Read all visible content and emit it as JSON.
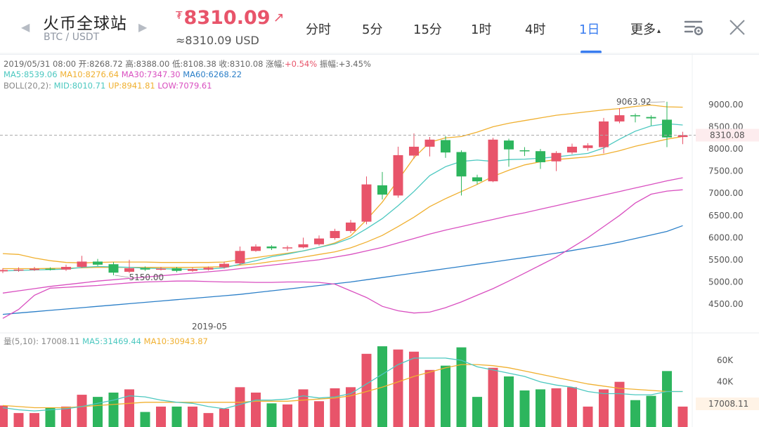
{
  "header": {
    "title": "火币全球站",
    "pair": "BTC / USDT",
    "price_currency": "₮",
    "price": "8310.09",
    "price_arrow": "↗",
    "price_usd": "≈8310.09 USD",
    "prev_icon": "chevron-left-icon",
    "next_icon": "chevron-right-icon",
    "settings_icon": "chart-settings-icon",
    "close_icon": "close-icon"
  },
  "tabs": [
    {
      "label": "分时",
      "active": false
    },
    {
      "label": "5分",
      "active": false
    },
    {
      "label": "15分",
      "active": false
    },
    {
      "label": "1时",
      "active": false
    },
    {
      "label": "4时",
      "active": false
    },
    {
      "label": "1日",
      "active": true
    },
    {
      "label": "更多",
      "active": false
    }
  ],
  "more_caret": "▴",
  "ohlc": {
    "date": "2019/05/31 08:00",
    "open_label": "开:",
    "open": "8268.72",
    "high_label": "高:",
    "high": "8388.00",
    "low_label": "低:",
    "low": "8108.38",
    "close_label": "收:",
    "close": "8310.08",
    "change_label": "涨幅:",
    "change": "+0.54%",
    "amplitude_label": "振幅:",
    "amplitude": "+3.45%"
  },
  "ma": {
    "ma5": "MA5:8539.06",
    "ma10": "MA10:8276.64",
    "ma30": "MA30:7347.30",
    "ma60": "MA60:6268.22"
  },
  "boll": {
    "label": "BOLL(20,2):",
    "mid": "MID:8010.71",
    "up": "UP:8941.81",
    "low": "LOW:7079.61"
  },
  "volume_info": {
    "label": "量(5,10): 17008.11",
    "ma5": "MA5:31469.44",
    "ma10": "MA10:30943.87"
  },
  "colors": {
    "up": "#e8546a",
    "down": "#2db55d",
    "ma5": "#4cc8c0",
    "ma10": "#f0b030",
    "ma30": "#d94fc0",
    "ma60": "#2b7fc8",
    "accent": "#3a7df0"
  },
  "chart_data": {
    "type": "candlestick",
    "x_label": "2019-05",
    "y_ticks": [
      "9000.00",
      "8500.00",
      "8000.00",
      "7500.00",
      "7000.00",
      "6500.00",
      "6000.00",
      "5500.00",
      "5000.00",
      "4500.00"
    ],
    "y_range": [
      4200,
      9300
    ],
    "current_price_tag": "8310.08",
    "max_annotation": "9063.92",
    "min_annotation": "5150.00",
    "candles": [
      {
        "o": 5240,
        "c": 5270,
        "h": 5310,
        "l": 5200
      },
      {
        "o": 5260,
        "c": 5280,
        "h": 5330,
        "l": 5230
      },
      {
        "o": 5270,
        "c": 5300,
        "h": 5340,
        "l": 5250
      },
      {
        "o": 5300,
        "c": 5290,
        "h": 5330,
        "l": 5260
      },
      {
        "o": 5280,
        "c": 5340,
        "h": 5390,
        "l": 5250
      },
      {
        "o": 5340,
        "c": 5460,
        "h": 5590,
        "l": 5320
      },
      {
        "o": 5460,
        "c": 5390,
        "h": 5520,
        "l": 5360
      },
      {
        "o": 5400,
        "c": 5210,
        "h": 5450,
        "l": 5150
      },
      {
        "o": 5230,
        "c": 5310,
        "h": 5500,
        "l": 5200
      },
      {
        "o": 5310,
        "c": 5280,
        "h": 5350,
        "l": 5250
      },
      {
        "o": 5280,
        "c": 5300,
        "h": 5340,
        "l": 5260
      },
      {
        "o": 5310,
        "c": 5250,
        "h": 5340,
        "l": 5220
      },
      {
        "o": 5250,
        "c": 5290,
        "h": 5320,
        "l": 5230
      },
      {
        "o": 5280,
        "c": 5320,
        "h": 5350,
        "l": 5260
      },
      {
        "o": 5330,
        "c": 5410,
        "h": 5460,
        "l": 5300
      },
      {
        "o": 5420,
        "c": 5700,
        "h": 5800,
        "l": 5380
      },
      {
        "o": 5700,
        "c": 5800,
        "h": 5850,
        "l": 5680
      },
      {
        "o": 5800,
        "c": 5760,
        "h": 5830,
        "l": 5720
      },
      {
        "o": 5760,
        "c": 5780,
        "h": 5820,
        "l": 5700
      },
      {
        "o": 5780,
        "c": 5850,
        "h": 6000,
        "l": 5760
      },
      {
        "o": 5850,
        "c": 5980,
        "h": 6050,
        "l": 5820
      },
      {
        "o": 5990,
        "c": 6150,
        "h": 6200,
        "l": 5950
      },
      {
        "o": 6150,
        "c": 6340,
        "h": 6400,
        "l": 6100
      },
      {
        "o": 6360,
        "c": 7200,
        "h": 7380,
        "l": 6300
      },
      {
        "o": 7180,
        "c": 6970,
        "h": 7480,
        "l": 6860
      },
      {
        "o": 6950,
        "c": 7860,
        "h": 8050,
        "l": 6900
      },
      {
        "o": 7850,
        "c": 8050,
        "h": 8350,
        "l": 7780
      },
      {
        "o": 8050,
        "c": 8210,
        "h": 8270,
        "l": 7830
      },
      {
        "o": 8200,
        "c": 7920,
        "h": 8290,
        "l": 7800
      },
      {
        "o": 7930,
        "c": 7380,
        "h": 7970,
        "l": 6950
      },
      {
        "o": 7360,
        "c": 7270,
        "h": 7420,
        "l": 7200
      },
      {
        "o": 7270,
        "c": 8210,
        "h": 8250,
        "l": 7250
      },
      {
        "o": 8190,
        "c": 7990,
        "h": 8230,
        "l": 7600
      },
      {
        "o": 7970,
        "c": 7950,
        "h": 8040,
        "l": 7840
      },
      {
        "o": 7950,
        "c": 7700,
        "h": 8000,
        "l": 7550
      },
      {
        "o": 7720,
        "c": 7910,
        "h": 7950,
        "l": 7500
      },
      {
        "o": 7920,
        "c": 8050,
        "h": 8120,
        "l": 7880
      },
      {
        "o": 8020,
        "c": 8080,
        "h": 8130,
        "l": 7960
      },
      {
        "o": 8040,
        "c": 8620,
        "h": 8700,
        "l": 7900
      },
      {
        "o": 8620,
        "c": 8760,
        "h": 8920,
        "l": 8580
      },
      {
        "o": 8760,
        "c": 8750,
        "h": 8800,
        "l": 8600
      },
      {
        "o": 8720,
        "c": 8690,
        "h": 8760,
        "l": 8530
      },
      {
        "o": 8660,
        "c": 8260,
        "h": 9064,
        "l": 8040
      },
      {
        "o": 8269,
        "c": 8310,
        "h": 8388,
        "l": 8108
      }
    ],
    "ma5": [
      5250,
      5260,
      5270,
      5280,
      5290,
      5330,
      5350,
      5340,
      5330,
      5310,
      5300,
      5290,
      5285,
      5290,
      5320,
      5400,
      5480,
      5570,
      5630,
      5700,
      5780,
      5860,
      5990,
      6200,
      6430,
      6720,
      7040,
      7400,
      7600,
      7720,
      7750,
      7720,
      7760,
      7770,
      7790,
      7820,
      7860,
      7900,
      8020,
      8220,
      8400,
      8520,
      8570,
      8540
    ],
    "ma10": [
      5300,
      5300,
      5300,
      5305,
      5310,
      5320,
      5330,
      5330,
      5330,
      5330,
      5330,
      5330,
      5330,
      5335,
      5345,
      5380,
      5410,
      5460,
      5500,
      5560,
      5620,
      5680,
      5770,
      5900,
      6050,
      6250,
      6460,
      6700,
      6880,
      7040,
      7200,
      7380,
      7520,
      7640,
      7710,
      7760,
      7790,
      7820,
      7880,
      7960,
      8060,
      8140,
      8220,
      8280
    ],
    "ma30": [
      4750,
      4800,
      4850,
      4900,
      4940,
      4980,
      5020,
      5050,
      5080,
      5110,
      5140,
      5170,
      5200,
      5230,
      5260,
      5300,
      5340,
      5380,
      5420,
      5460,
      5500,
      5560,
      5620,
      5700,
      5780,
      5880,
      5980,
      6080,
      6170,
      6250,
      6330,
      6410,
      6490,
      6560,
      6640,
      6720,
      6800,
      6880,
      6960,
      7040,
      7120,
      7200,
      7280,
      7350
    ],
    "ma60": [
      4270,
      4300,
      4330,
      4360,
      4390,
      4420,
      4450,
      4480,
      4510,
      4540,
      4570,
      4600,
      4630,
      4660,
      4690,
      4720,
      4760,
      4800,
      4840,
      4880,
      4920,
      4960,
      5000,
      5050,
      5100,
      5150,
      5200,
      5250,
      5300,
      5350,
      5400,
      5450,
      5500,
      5550,
      5600,
      5650,
      5710,
      5770,
      5830,
      5900,
      5980,
      6060,
      6140,
      6270
    ],
    "boll_up": [
      5640,
      5620,
      5540,
      5480,
      5440,
      5430,
      5440,
      5450,
      5450,
      5450,
      5440,
      5440,
      5440,
      5440,
      5450,
      5500,
      5550,
      5600,
      5650,
      5700,
      5780,
      5880,
      6040,
      6400,
      6800,
      7300,
      7800,
      8150,
      8250,
      8280,
      8380,
      8500,
      8580,
      8640,
      8700,
      8760,
      8800,
      8840,
      8880,
      8910,
      8960,
      8990,
      8950,
      8942
    ],
    "boll_mid": [
      5160,
      5180,
      5200,
      5220,
      5240,
      5260,
      5275,
      5280,
      5290,
      5300,
      5310,
      5310,
      5320,
      5330,
      5340,
      5370,
      5400,
      5440,
      5490,
      5540,
      5600,
      5680,
      5760,
      5880,
      6020,
      6200,
      6400,
      6620,
      6800,
      6950,
      7090,
      7230,
      7350,
      7460,
      7550,
      7630,
      7700,
      7760,
      7840,
      7900,
      7960,
      8000,
      8010,
      8011
    ],
    "boll_low": [
      4180,
      4380,
      4700,
      4860,
      4880,
      4900,
      4920,
      4950,
      4980,
      5000,
      5010,
      5020,
      5020,
      5010,
      5000,
      5000,
      4990,
      4990,
      5000,
      5000,
      4990,
      4950,
      4800,
      4650,
      4450,
      4350,
      4300,
      4320,
      4420,
      4550,
      4700,
      4850,
      5020,
      5200,
      5380,
      5560,
      5780,
      6000,
      6250,
      6500,
      6780,
      6980,
      7050,
      7080
    ],
    "volume": {
      "y_ticks": [
        "60K",
        "40K"
      ],
      "y_max": 75000,
      "current_tag": "17008.11",
      "values": [
        18000,
        11000,
        11000,
        16000,
        17000,
        28000,
        26000,
        30000,
        33000,
        12000,
        17000,
        17000,
        17000,
        11000,
        15000,
        35000,
        30000,
        20000,
        19000,
        33000,
        22000,
        34000,
        35000,
        66000,
        73000,
        70000,
        68000,
        51000,
        55000,
        72000,
        26000,
        53000,
        45000,
        32000,
        33000,
        34000,
        35000,
        17000,
        33000,
        40000,
        23000,
        27000,
        50000,
        17000
      ],
      "ma5": [
        16000,
        14000,
        13000,
        14000,
        15000,
        17000,
        20000,
        23000,
        27000,
        26000,
        23000,
        21000,
        20000,
        17000,
        15000,
        19000,
        23000,
        23000,
        24000,
        27000,
        25000,
        26000,
        29000,
        38000,
        47000,
        56000,
        62000,
        62000,
        62000,
        60000,
        54000,
        51000,
        48000,
        45000,
        40000,
        37000,
        35000,
        31000,
        29000,
        29000,
        28000,
        28000,
        31000,
        31000
      ],
      "ma10": [
        18000,
        17000,
        16000,
        16000,
        16000,
        17000,
        18000,
        19000,
        20000,
        21000,
        21000,
        21000,
        21000,
        21000,
        21000,
        21000,
        22000,
        22000,
        22000,
        23000,
        24000,
        25000,
        27000,
        31000,
        35000,
        40000,
        45000,
        49000,
        53000,
        56000,
        56000,
        55000,
        53000,
        50000,
        47000,
        44000,
        41000,
        38000,
        36000,
        34000,
        33000,
        32000,
        31000,
        31000
      ]
    }
  }
}
